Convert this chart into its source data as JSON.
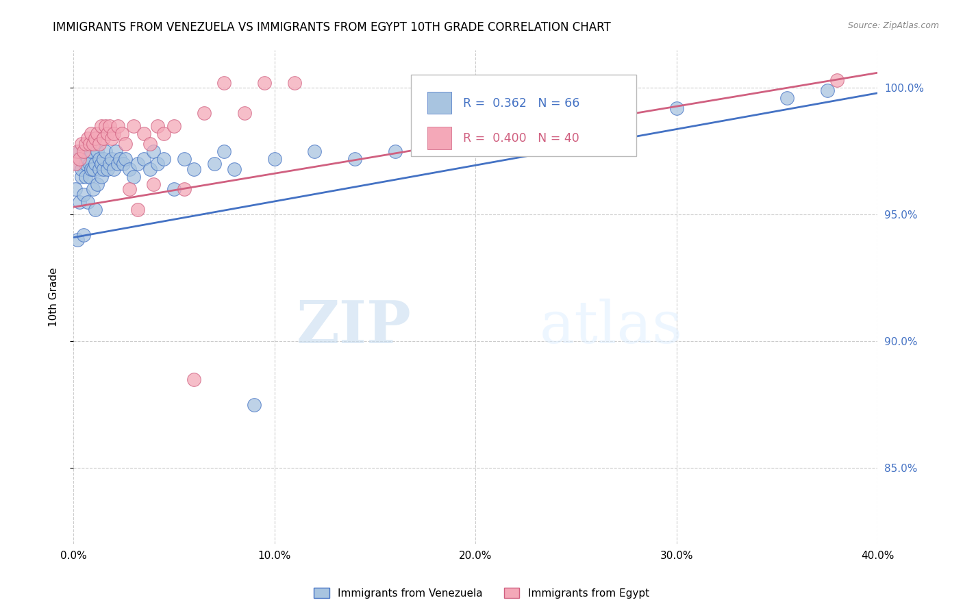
{
  "title": "IMMIGRANTS FROM VENEZUELA VS IMMIGRANTS FROM EGYPT 10TH GRADE CORRELATION CHART",
  "source": "Source: ZipAtlas.com",
  "ylabel": "10th Grade",
  "xlim": [
    0.0,
    0.4
  ],
  "ylim": [
    0.82,
    1.015
  ],
  "xtick_labels": [
    "0.0%",
    "10.0%",
    "20.0%",
    "30.0%",
    "40.0%"
  ],
  "xtick_values": [
    0.0,
    0.1,
    0.2,
    0.3,
    0.4
  ],
  "ytick_labels": [
    "85.0%",
    "90.0%",
    "95.0%",
    "100.0%"
  ],
  "ytick_values": [
    0.85,
    0.9,
    0.95,
    1.0
  ],
  "legend_label1": "Immigrants from Venezuela",
  "legend_label2": "Immigrants from Egypt",
  "r1": "0.362",
  "n1": "66",
  "r2": "0.400",
  "n2": "40",
  "color_venezuela": "#a8c4e0",
  "color_egypt": "#f4a8b8",
  "color_trendline1": "#4472c4",
  "color_trendline2": "#d06080",
  "watermark_zip": "ZIP",
  "watermark_atlas": "atlas",
  "venezuela_x": [
    0.001,
    0.002,
    0.002,
    0.003,
    0.003,
    0.004,
    0.004,
    0.005,
    0.005,
    0.006,
    0.006,
    0.007,
    0.007,
    0.008,
    0.008,
    0.009,
    0.009,
    0.01,
    0.01,
    0.011,
    0.011,
    0.012,
    0.012,
    0.013,
    0.013,
    0.014,
    0.014,
    0.015,
    0.015,
    0.016,
    0.017,
    0.018,
    0.019,
    0.02,
    0.021,
    0.022,
    0.023,
    0.025,
    0.026,
    0.028,
    0.03,
    0.032,
    0.035,
    0.038,
    0.04,
    0.042,
    0.045,
    0.05,
    0.055,
    0.06,
    0.07,
    0.075,
    0.08,
    0.09,
    0.1,
    0.12,
    0.14,
    0.16,
    0.18,
    0.2,
    0.22,
    0.24,
    0.27,
    0.3,
    0.355,
    0.375
  ],
  "venezuela_y": [
    0.96,
    0.94,
    0.97,
    0.955,
    0.975,
    0.965,
    0.968,
    0.942,
    0.958,
    0.965,
    0.97,
    0.955,
    0.972,
    0.965,
    0.97,
    0.968,
    0.975,
    0.96,
    0.968,
    0.952,
    0.97,
    0.962,
    0.975,
    0.968,
    0.972,
    0.965,
    0.97,
    0.968,
    0.972,
    0.975,
    0.968,
    0.97,
    0.972,
    0.968,
    0.975,
    0.97,
    0.972,
    0.97,
    0.972,
    0.968,
    0.965,
    0.97,
    0.972,
    0.968,
    0.975,
    0.97,
    0.972,
    0.96,
    0.972,
    0.968,
    0.97,
    0.975,
    0.968,
    0.875,
    0.972,
    0.975,
    0.972,
    0.975,
    0.978,
    0.982,
    0.985,
    0.988,
    0.99,
    0.992,
    0.996,
    0.999
  ],
  "egypt_x": [
    0.001,
    0.002,
    0.003,
    0.004,
    0.005,
    0.006,
    0.007,
    0.008,
    0.009,
    0.01,
    0.011,
    0.012,
    0.013,
    0.014,
    0.015,
    0.016,
    0.017,
    0.018,
    0.019,
    0.02,
    0.022,
    0.024,
    0.026,
    0.028,
    0.03,
    0.032,
    0.035,
    0.038,
    0.04,
    0.042,
    0.045,
    0.05,
    0.055,
    0.06,
    0.065,
    0.075,
    0.085,
    0.095,
    0.11,
    0.38
  ],
  "egypt_y": [
    0.97,
    0.975,
    0.972,
    0.978,
    0.975,
    0.978,
    0.98,
    0.978,
    0.982,
    0.978,
    0.98,
    0.982,
    0.978,
    0.985,
    0.98,
    0.985,
    0.982,
    0.985,
    0.98,
    0.982,
    0.985,
    0.982,
    0.978,
    0.96,
    0.985,
    0.952,
    0.982,
    0.978,
    0.962,
    0.985,
    0.982,
    0.985,
    0.96,
    0.885,
    0.99,
    1.002,
    0.99,
    1.002,
    1.002,
    1.003
  ],
  "trendline_ven_x0": 0.0,
  "trendline_ven_y0": 0.941,
  "trendline_ven_x1": 0.4,
  "trendline_ven_y1": 0.998,
  "trendline_egy_x0": 0.0,
  "trendline_egy_y0": 0.953,
  "trendline_egy_x1": 0.4,
  "trendline_egy_y1": 1.006
}
